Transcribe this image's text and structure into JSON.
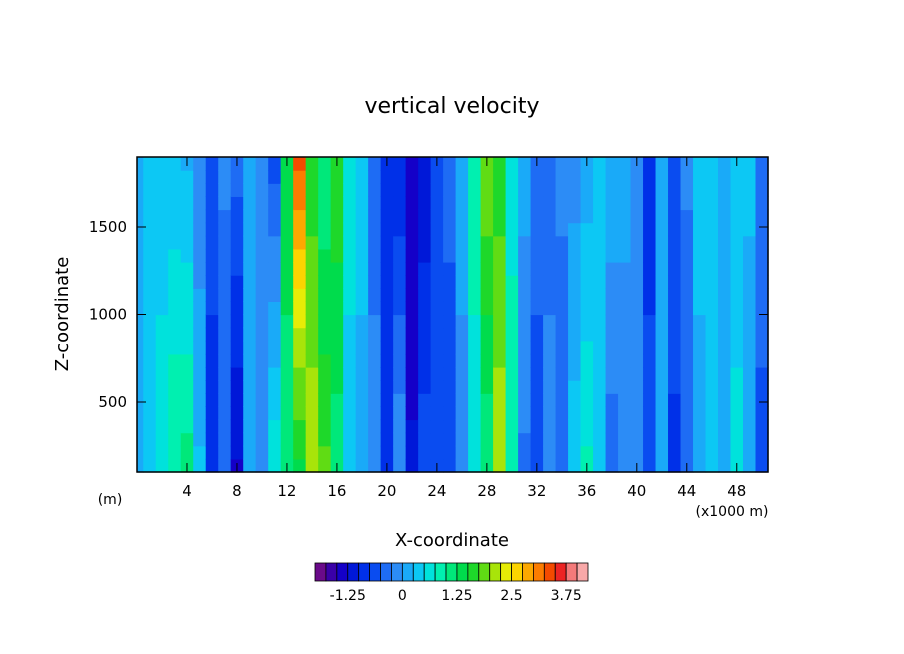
{
  "chart_data": {
    "type": "heatmap",
    "title": "vertical velocity",
    "xlabel": "X-coordinate",
    "ylabel": "Z-coordinate",
    "x_unit_label": "(m)",
    "x_scale_label": "(x1000 m)",
    "xlim": [
      0,
      50.5
    ],
    "ylim": [
      100,
      1900
    ],
    "x_ticks": [
      4,
      8,
      12,
      16,
      20,
      24,
      28,
      32,
      36,
      40,
      44,
      48
    ],
    "y_ticks": [
      500,
      1000,
      1500
    ],
    "colorbar": {
      "min": -2.0,
      "step": 0.25,
      "levels": 24,
      "tick_values": [
        -1.25,
        0,
        1.25,
        2.5,
        3.75
      ],
      "tick_labels": [
        "-1.25",
        "0",
        "1.25",
        "2.5",
        "3.75"
      ],
      "colors": [
        "#6a0a8a",
        "#3a00a8",
        "#1400c8",
        "#0018d8",
        "#0030e8",
        "#0a4cf0",
        "#1e6cf4",
        "#2c8cf6",
        "#1aaaf8",
        "#0cc8f4",
        "#00e2dc",
        "#00f0b0",
        "#00e87a",
        "#00dc4c",
        "#1ed82a",
        "#60dc14",
        "#a8e40a",
        "#e6ec06",
        "#fcd400",
        "#fca800",
        "#fc7c00",
        "#f44a00",
        "#ec2424",
        "#f47a7a",
        "#f8a8a8"
      ]
    },
    "columns": [
      {
        "x": 0.0,
        "bottom": 0.0,
        "top": 0.1
      },
      {
        "x": 1.0,
        "bottom": 0.3,
        "top": 0.4
      },
      {
        "x": 2.0,
        "bottom": 0.6,
        "top": 0.4
      },
      {
        "x": 3.0,
        "bottom": 1.0,
        "top": 0.3
      },
      {
        "x": 4.0,
        "bottom": 1.1,
        "top": 0.2
      },
      {
        "x": 5.0,
        "bottom": 0.3,
        "top": -0.2
      },
      {
        "x": 6.0,
        "bottom": -0.9,
        "top": -0.6
      },
      {
        "x": 7.0,
        "bottom": -0.5,
        "top": -0.2
      },
      {
        "x": 8.0,
        "bottom": -1.3,
        "top": -0.4
      },
      {
        "x": 9.0,
        "bottom": 0.1,
        "top": 0.1
      },
      {
        "x": 10.0,
        "bottom": -0.1,
        "top": -0.1
      },
      {
        "x": 11.0,
        "bottom": 0.7,
        "top": -0.6
      },
      {
        "x": 12.0,
        "bottom": 1.0,
        "top": 1.5
      },
      {
        "x": 13.0,
        "bottom": 1.4,
        "top": 3.3
      },
      {
        "x": 14.0,
        "bottom": 2.2,
        "top": 1.6
      },
      {
        "x": 15.0,
        "bottom": 1.8,
        "top": 1.0
      },
      {
        "x": 16.0,
        "bottom": 1.1,
        "top": 1.7
      },
      {
        "x": 17.0,
        "bottom": 0.4,
        "top": 0.6
      },
      {
        "x": 18.0,
        "bottom": 0.2,
        "top": 0.3
      },
      {
        "x": 19.0,
        "bottom": -0.2,
        "top": -0.3
      },
      {
        "x": 20.0,
        "bottom": -0.8,
        "top": -0.9
      },
      {
        "x": 21.0,
        "bottom": 0.0,
        "top": -1.0
      },
      {
        "x": 22.0,
        "bottom": -1.2,
        "top": -1.5
      },
      {
        "x": 23.0,
        "bottom": -0.6,
        "top": -1.2
      },
      {
        "x": 24.0,
        "bottom": -0.5,
        "top": -0.6
      },
      {
        "x": 25.0,
        "bottom": -0.7,
        "top": -0.4
      },
      {
        "x": 26.0,
        "bottom": -0.2,
        "top": 0.2
      },
      {
        "x": 27.0,
        "bottom": 0.6,
        "top": 0.9
      },
      {
        "x": 28.0,
        "bottom": 1.0,
        "top": 2.0
      },
      {
        "x": 29.0,
        "bottom": 2.2,
        "top": 1.6
      },
      {
        "x": 30.0,
        "bottom": 1.0,
        "top": 0.6
      },
      {
        "x": 31.0,
        "bottom": -0.3,
        "top": 0.1
      },
      {
        "x": 32.0,
        "bottom": -0.7,
        "top": -0.3
      },
      {
        "x": 33.0,
        "bottom": -0.2,
        "top": -0.3
      },
      {
        "x": 34.0,
        "bottom": -0.4,
        "top": -0.2
      },
      {
        "x": 35.0,
        "bottom": 0.4,
        "top": -0.1
      },
      {
        "x": 36.0,
        "bottom": 0.8,
        "top": 0.1
      },
      {
        "x": 37.0,
        "bottom": 0.3,
        "top": 0.3
      },
      {
        "x": 38.0,
        "bottom": -0.4,
        "top": 0.2
      },
      {
        "x": 39.0,
        "bottom": -0.2,
        "top": 0.1
      },
      {
        "x": 40.0,
        "bottom": -0.1,
        "top": -0.1
      },
      {
        "x": 41.0,
        "bottom": -0.7,
        "top": -0.8
      },
      {
        "x": 42.0,
        "bottom": 0.2,
        "top": 0.1
      },
      {
        "x": 43.0,
        "bottom": -0.8,
        "top": -0.6
      },
      {
        "x": 44.0,
        "bottom": -0.5,
        "top": -0.2
      },
      {
        "x": 45.0,
        "bottom": 0.2,
        "top": 0.3
      },
      {
        "x": 46.0,
        "bottom": 0.4,
        "top": 0.3
      },
      {
        "x": 47.0,
        "bottom": 0.2,
        "top": 0.1
      },
      {
        "x": 48.0,
        "bottom": 0.6,
        "top": 0.3
      },
      {
        "x": 49.0,
        "bottom": 0.1,
        "top": 0.3
      },
      {
        "x": 50.0,
        "bottom": -0.6,
        "top": -0.3
      }
    ]
  }
}
